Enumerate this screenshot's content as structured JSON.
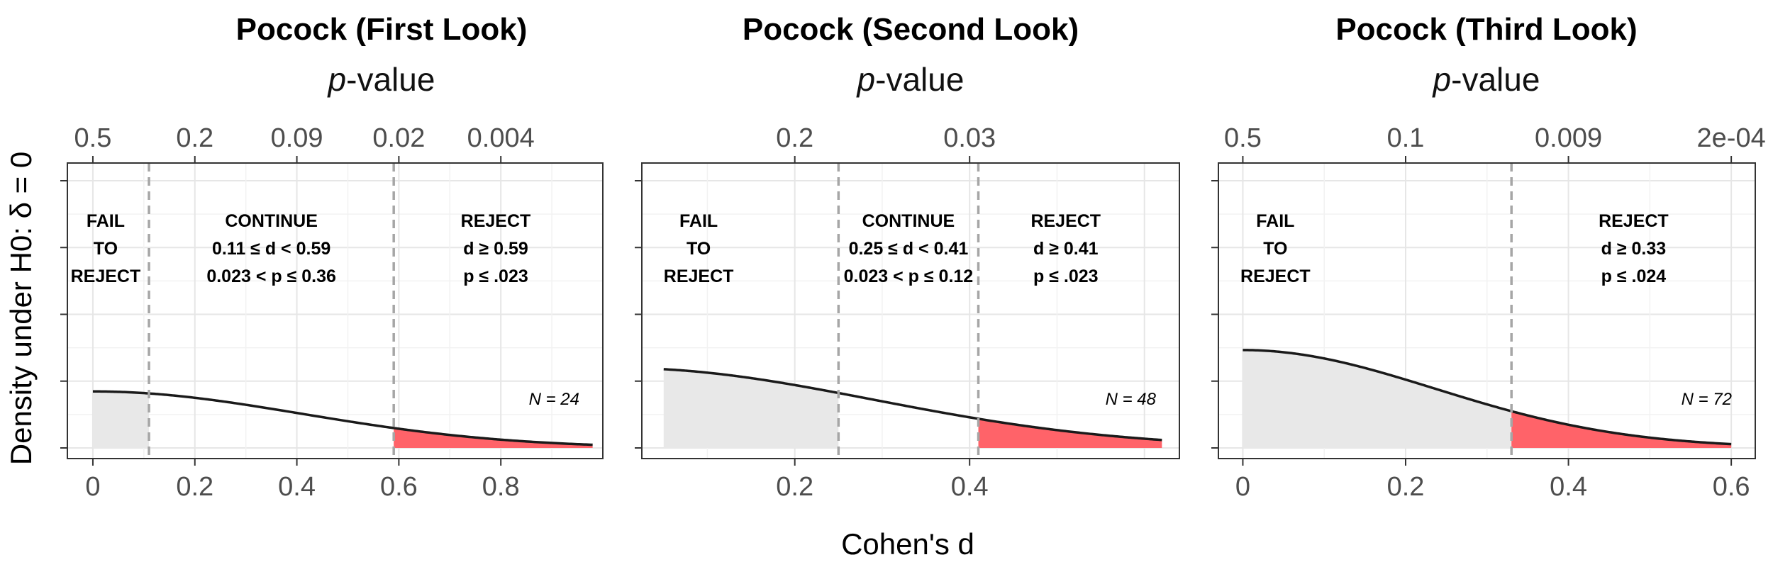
{
  "chart_data": {
    "type": "area",
    "xlabel": "Cohen's d",
    "ylabel": "Density under H0: δ = 0",
    "secondary_axis_title": "p-value",
    "panels": [
      {
        "title": "Pocock (First Look)",
        "n": 24,
        "n_label": "N = 24",
        "xlim": [
          -0.05,
          1.0
        ],
        "d_range": [
          0,
          0.98
        ],
        "x_ticks": [
          0,
          0.2,
          0.4,
          0.6,
          0.8
        ],
        "x_tick_labels": [
          "0",
          "0.2",
          "0.4",
          "0.6",
          "0.8"
        ],
        "p_ticks": [
          {
            "label": "0.5",
            "d": 0.0
          },
          {
            "label": "0.2",
            "d": 0.2
          },
          {
            "label": "0.09",
            "d": 0.4
          },
          {
            "label": "0.02",
            "d": 0.6
          },
          {
            "label": "0.004",
            "d": 0.8
          }
        ],
        "fail_bound": 0.11,
        "reject_bound": 0.59,
        "regions": [
          {
            "lines": [
              "FAIL",
              "TO",
              "REJECT"
            ],
            "x": 0.025
          },
          {
            "lines": [
              "CONTINUE",
              "0.11 ≤ d < 0.59",
              "0.023 < p ≤ 0.36"
            ],
            "x": 0.35
          },
          {
            "lines": [
              "REJECT",
              "d ≥ 0.59",
              "p ≤ .023"
            ],
            "x": 0.79
          }
        ]
      },
      {
        "title": "Pocock (Second Look)",
        "n": 48,
        "n_label": "N = 48",
        "xlim": [
          0.025,
          0.64
        ],
        "d_range": [
          0.05,
          0.62
        ],
        "x_ticks": [
          0.2,
          0.4
        ],
        "x_tick_labels": [
          "0.2",
          "0.4"
        ],
        "p_ticks": [
          {
            "label": "0.2",
            "d": 0.2
          },
          {
            "label": "0.03",
            "d": 0.4
          }
        ],
        "fail_bound": 0.25,
        "reject_bound": 0.41,
        "regions": [
          {
            "lines": [
              "FAIL",
              "TO",
              "REJECT"
            ],
            "x": 0.09
          },
          {
            "lines": [
              "CONTINUE",
              "0.25 ≤ d < 0.41",
              "0.023 < p ≤ 0.12"
            ],
            "x": 0.33
          },
          {
            "lines": [
              "REJECT",
              "d ≥ 0.41",
              "p ≤ .023"
            ],
            "x": 0.51
          }
        ]
      },
      {
        "title": "Pocock (Third Look)",
        "n": 72,
        "n_label": "N = 72",
        "xlim": [
          -0.03,
          0.6295
        ],
        "d_range": [
          0,
          0.6
        ],
        "x_ticks": [
          0,
          0.2,
          0.4,
          0.6
        ],
        "x_tick_labels": [
          "0",
          "0.2",
          "0.4",
          "0.6"
        ],
        "p_ticks": [
          {
            "label": "0.5",
            "d": 0.0
          },
          {
            "label": "0.1",
            "d": 0.2
          },
          {
            "label": "0.009",
            "d": 0.4
          },
          {
            "label": "2e-04",
            "d": 0.6
          }
        ],
        "fail_bound": null,
        "reject_bound": 0.33,
        "regions": [
          {
            "lines": [
              "FAIL",
              "TO",
              "REJECT"
            ],
            "x": 0.04
          },
          {
            "lines": [
              "REJECT",
              "d ≥ 0.33",
              "p ≤ .024"
            ],
            "x": 0.48
          }
        ]
      }
    ],
    "colors": {
      "fail_fill": "#e8e8e8",
      "reject_fill": "#ff6369",
      "curve": "#1a1a1a",
      "boundary": "#a6a6a6",
      "grid_major": "#e6e6e6",
      "grid_minor": "#f2f2f2",
      "panel_border": "#333333"
    }
  }
}
